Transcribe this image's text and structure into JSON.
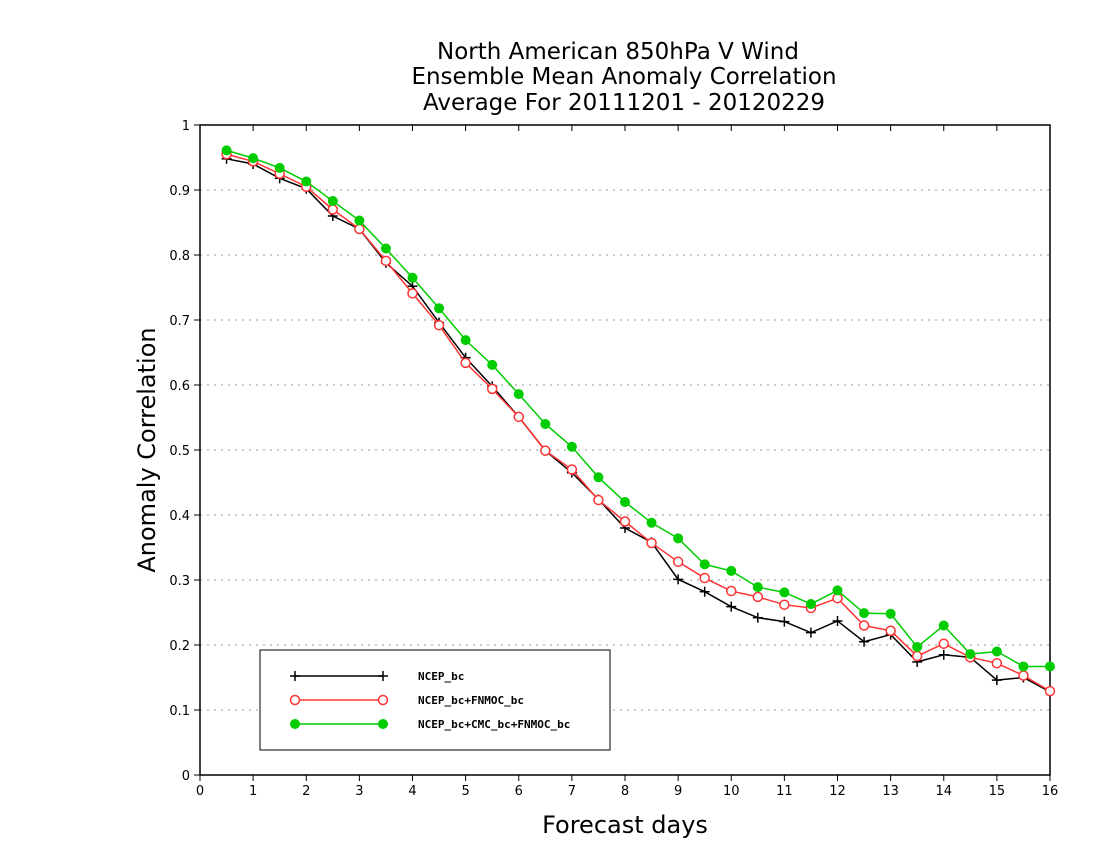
{
  "chart_data": {
    "type": "line",
    "title": [
      "North American 850hPa V Wind",
      "Ensemble Mean Anomaly Correlation",
      "Average For 20111201 - 20120229"
    ],
    "xlabel": "Forecast days",
    "ylabel": "Anomaly Correlation",
    "xlim": [
      0,
      16
    ],
    "ylim": [
      0,
      1
    ],
    "xticks": [
      "0",
      "1",
      "2",
      "3",
      "4",
      "5",
      "6",
      "7",
      "8",
      "9",
      "10",
      "11",
      "12",
      "13",
      "14",
      "15",
      "16"
    ],
    "yticks": [
      "0",
      "0.1",
      "0.2",
      "0.3",
      "0.4",
      "0.5",
      "0.6",
      "0.7",
      "0.8",
      "0.9",
      "1"
    ],
    "grid": "horizontal dotted",
    "legend_position": "bottom-left",
    "x": [
      0.5,
      1,
      1.5,
      2,
      2.5,
      3,
      3.5,
      4,
      4.5,
      5,
      5.5,
      6,
      6.5,
      7,
      7.5,
      8,
      8.5,
      9,
      9.5,
      10,
      10.5,
      11,
      11.5,
      12,
      12.5,
      13,
      13.5,
      14,
      14.5,
      15,
      15.5,
      16
    ],
    "series": [
      {
        "name": "NCEP_bc",
        "color": "#000000",
        "marker": "plus",
        "values": [
          0.948,
          0.94,
          0.918,
          0.902,
          0.86,
          0.84,
          0.788,
          0.752,
          0.696,
          0.642,
          0.598,
          0.551,
          0.499,
          0.465,
          0.424,
          0.38,
          0.358,
          0.301,
          0.282,
          0.259,
          0.242,
          0.236,
          0.219,
          0.237,
          0.205,
          0.216,
          0.174,
          0.185,
          0.181,
          0.146,
          0.15,
          0.128
        ]
      },
      {
        "name": "NCEP_bc+FNMOC_bc",
        "color": "#ff3333",
        "marker": "open-circle",
        "values": [
          0.955,
          0.944,
          0.925,
          0.905,
          0.87,
          0.84,
          0.791,
          0.741,
          0.692,
          0.634,
          0.594,
          0.551,
          0.499,
          0.47,
          0.423,
          0.39,
          0.357,
          0.328,
          0.303,
          0.283,
          0.274,
          0.262,
          0.257,
          0.272,
          0.23,
          0.222,
          0.183,
          0.202,
          0.181,
          0.172,
          0.153,
          0.129
        ]
      },
      {
        "name": "NCEP_bc+CMC_bc+FNMOC_bc",
        "color": "#00cc00",
        "marker": "filled-circle",
        "values": [
          0.961,
          0.949,
          0.934,
          0.913,
          0.883,
          0.853,
          0.81,
          0.765,
          0.718,
          0.669,
          0.631,
          0.586,
          0.54,
          0.505,
          0.458,
          0.42,
          0.388,
          0.364,
          0.324,
          0.314,
          0.289,
          0.281,
          0.263,
          0.284,
          0.249,
          0.248,
          0.197,
          0.23,
          0.186,
          0.19,
          0.167,
          0.167
        ]
      }
    ]
  }
}
